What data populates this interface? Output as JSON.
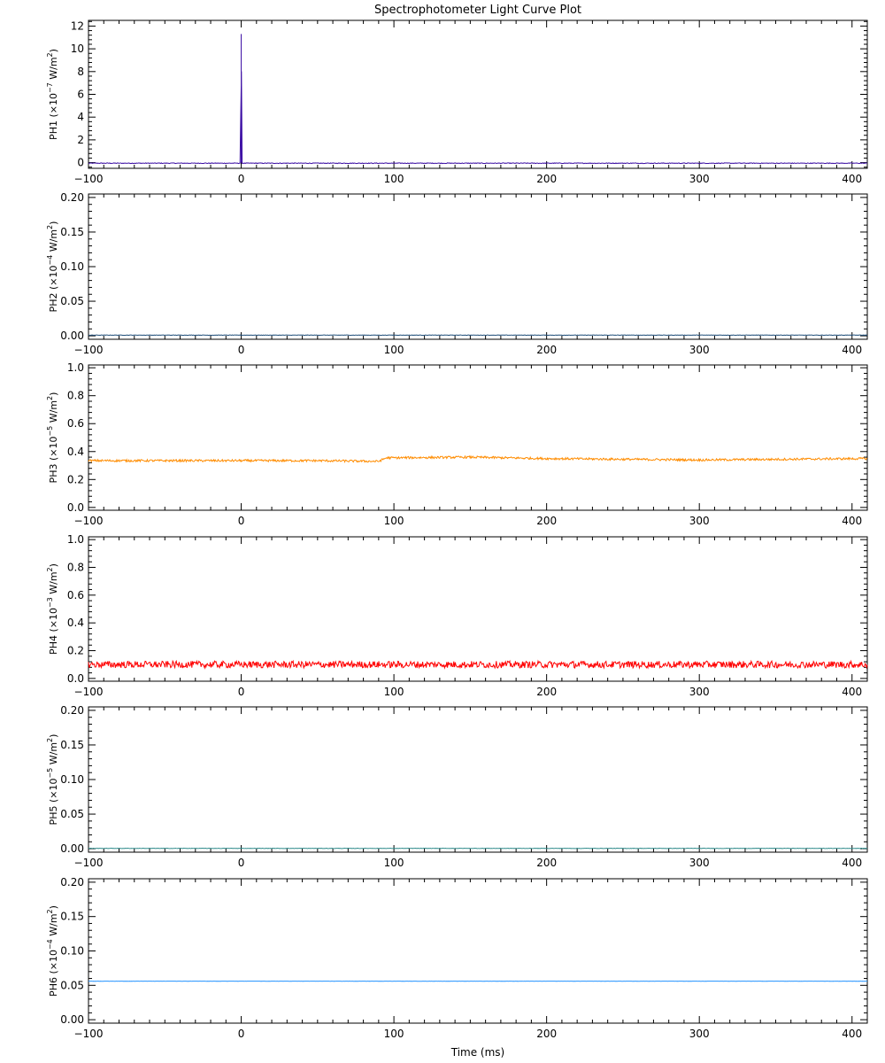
{
  "title": "Spectrophotometer Light Curve Plot",
  "xlabel": "Time (ms)",
  "chart_data": [
    {
      "type": "line",
      "channel": "PH1",
      "ylabel_prefix": "PH1",
      "unit_exp": "-7",
      "xlim": [
        -100,
        410
      ],
      "ylim": [
        -0.5,
        12.5
      ],
      "yticks": [
        0,
        2,
        4,
        6,
        8,
        10,
        12
      ],
      "xticks": [
        -100,
        0,
        100,
        200,
        300,
        400
      ],
      "series": [
        {
          "color": "#3a0ca3",
          "noise": 0.03,
          "points": [
            [
              -100,
              -0.05
            ],
            [
              -0.5,
              -0.05
            ],
            [
              0,
              11.3
            ],
            [
              0.5,
              -0.05
            ],
            [
              410,
              -0.05
            ]
          ]
        }
      ]
    },
    {
      "type": "line",
      "channel": "PH2",
      "ylabel_prefix": "PH2",
      "unit_exp": "-4",
      "xlim": [
        -100,
        410
      ],
      "ylim": [
        -0.005,
        0.205
      ],
      "yticks": [
        0.0,
        0.05,
        0.1,
        0.15,
        0.2
      ],
      "xticks": [
        -100,
        0,
        100,
        200,
        300,
        400
      ],
      "series": [
        {
          "color": "#1f4e79",
          "noise": 0.0003,
          "points": [
            [
              -100,
              0.001
            ],
            [
              410,
              0.001
            ]
          ]
        }
      ]
    },
    {
      "type": "line",
      "channel": "PH3",
      "ylabel_prefix": "PH3",
      "unit_exp": "-5",
      "xlim": [
        -100,
        410
      ],
      "ylim": [
        -0.02,
        1.02
      ],
      "yticks": [
        0.0,
        0.2,
        0.4,
        0.6,
        0.8,
        1.0
      ],
      "xticks": [
        -100,
        0,
        100,
        200,
        300,
        400
      ],
      "series": [
        {
          "color": "#ff8c00",
          "noise": 0.008,
          "points": [
            [
              -100,
              0.335
            ],
            [
              0,
              0.335
            ],
            [
              50,
              0.335
            ],
            [
              90,
              0.33
            ],
            [
              95,
              0.355
            ],
            [
              150,
              0.36
            ],
            [
              200,
              0.35
            ],
            [
              250,
              0.345
            ],
            [
              300,
              0.34
            ],
            [
              410,
              0.35
            ]
          ]
        }
      ]
    },
    {
      "type": "line",
      "channel": "PH4",
      "ylabel_prefix": "PH4",
      "unit_exp": "-3",
      "xlim": [
        -100,
        410
      ],
      "ylim": [
        -0.02,
        1.02
      ],
      "yticks": [
        0.0,
        0.2,
        0.4,
        0.6,
        0.8,
        1.0
      ],
      "xticks": [
        -100,
        0,
        100,
        200,
        300,
        400
      ],
      "series": [
        {
          "color": "#ff0000",
          "noise": 0.025,
          "points": [
            [
              -100,
              0.1
            ],
            [
              410,
              0.1
            ]
          ]
        }
      ]
    },
    {
      "type": "line",
      "channel": "PH5",
      "ylabel_prefix": "PH5",
      "unit_exp": "-5",
      "xlim": [
        -100,
        410
      ],
      "ylim": [
        -0.005,
        0.205
      ],
      "yticks": [
        0.0,
        0.05,
        0.1,
        0.15,
        0.2
      ],
      "xticks": [
        -100,
        0,
        100,
        200,
        300,
        400
      ],
      "series": [
        {
          "color": "#2e8b8b",
          "noise": 0.0003,
          "points": [
            [
              -100,
              0.0005
            ],
            [
              410,
              0.0005
            ]
          ]
        }
      ]
    },
    {
      "type": "line",
      "channel": "PH6",
      "ylabel_prefix": "PH6",
      "unit_exp": "-4",
      "xlim": [
        -100,
        410
      ],
      "ylim": [
        -0.005,
        0.205
      ],
      "yticks": [
        0.0,
        0.05,
        0.1,
        0.15,
        0.2
      ],
      "xticks": [
        -100,
        0,
        100,
        200,
        300,
        400
      ],
      "series": [
        {
          "color": "#1e90ff",
          "noise": 0.0001,
          "points": [
            [
              -100,
              0.056
            ],
            [
              410,
              0.056
            ]
          ]
        }
      ]
    }
  ]
}
